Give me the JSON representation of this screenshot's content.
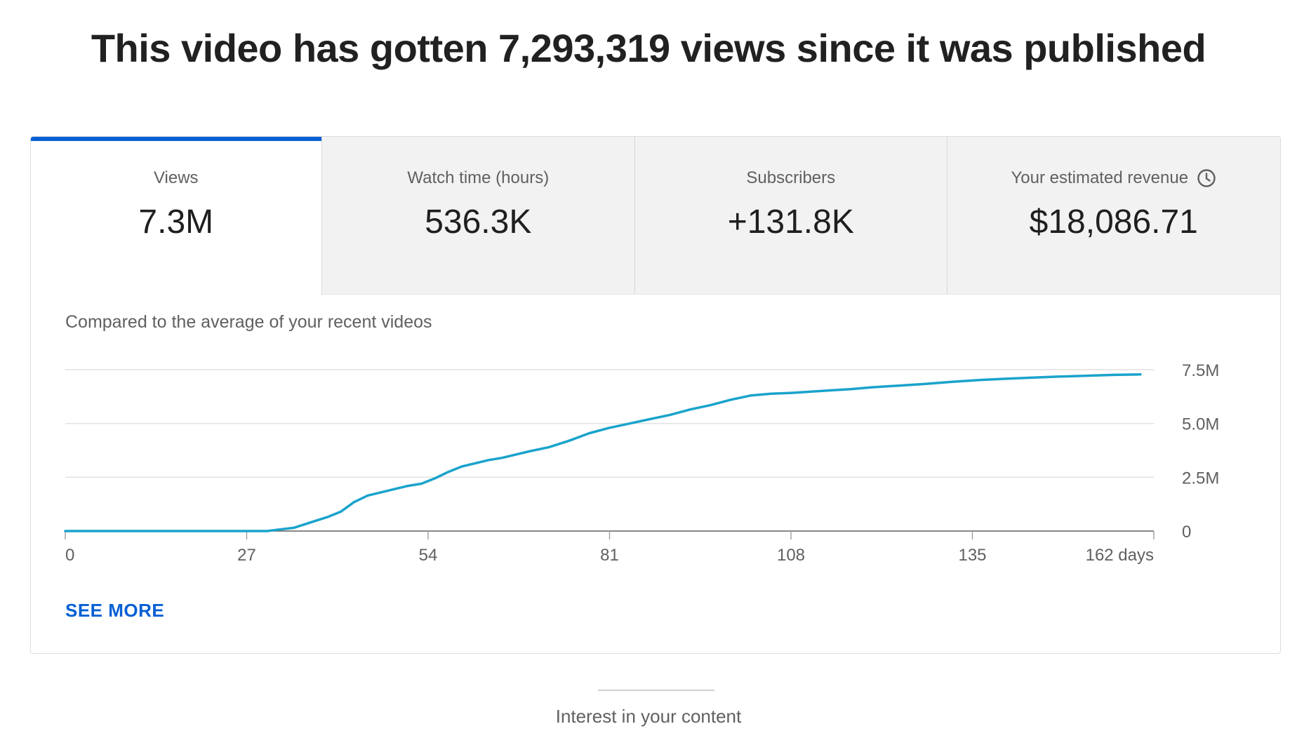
{
  "headline": "This video has gotten 7,293,319 views since it was published",
  "tabs": [
    {
      "label": "Views",
      "value": "7.3M",
      "active": true
    },
    {
      "label": "Watch time (hours)",
      "value": "536.3K",
      "active": false
    },
    {
      "label": "Subscribers",
      "value": "+131.8K",
      "active": false
    },
    {
      "label": "Your estimated revenue",
      "value": "$18,086.71",
      "active": false,
      "icon": "clock-icon"
    }
  ],
  "compare_text": "Compared to the average of your recent videos",
  "see_more": "SEE MORE",
  "next_section": "Interest in your content",
  "colors": {
    "accent": "#065fd4",
    "line": "#1aa3cc",
    "grid": "#e0e0e0",
    "baseline": "#606060"
  },
  "chart_data": {
    "type": "line",
    "xlabel": "days",
    "x_ticks": [
      "0",
      "27",
      "54",
      "81",
      "108",
      "135",
      "162 days"
    ],
    "y_ticks": [
      "0",
      "2.5M",
      "5.0M",
      "7.5M"
    ],
    "xlim": [
      0,
      162
    ],
    "ylim": [
      0,
      7500000
    ],
    "grid": true,
    "series": [
      {
        "x": [
          0,
          30,
          31,
          34,
          37,
          39,
          41,
          43,
          45,
          47,
          49,
          51,
          53,
          55,
          57,
          59,
          61,
          63,
          65,
          67,
          69,
          72,
          75,
          78,
          81,
          84,
          87,
          90,
          93,
          96,
          99,
          102,
          105,
          108,
          111,
          114,
          117,
          120,
          124,
          128,
          132,
          136,
          140,
          144,
          148,
          152,
          156,
          160
        ],
        "y": [
          0,
          0,
          40000,
          150000,
          450000,
          650000,
          900000,
          1350000,
          1650000,
          1800000,
          1950000,
          2100000,
          2200000,
          2450000,
          2750000,
          3000000,
          3150000,
          3300000,
          3400000,
          3550000,
          3700000,
          3900000,
          4200000,
          4550000,
          4800000,
          5000000,
          5200000,
          5400000,
          5650000,
          5850000,
          6100000,
          6300000,
          6380000,
          6420000,
          6480000,
          6540000,
          6600000,
          6680000,
          6760000,
          6840000,
          6940000,
          7020000,
          7080000,
          7130000,
          7180000,
          7220000,
          7260000,
          7280000
        ]
      }
    ]
  }
}
